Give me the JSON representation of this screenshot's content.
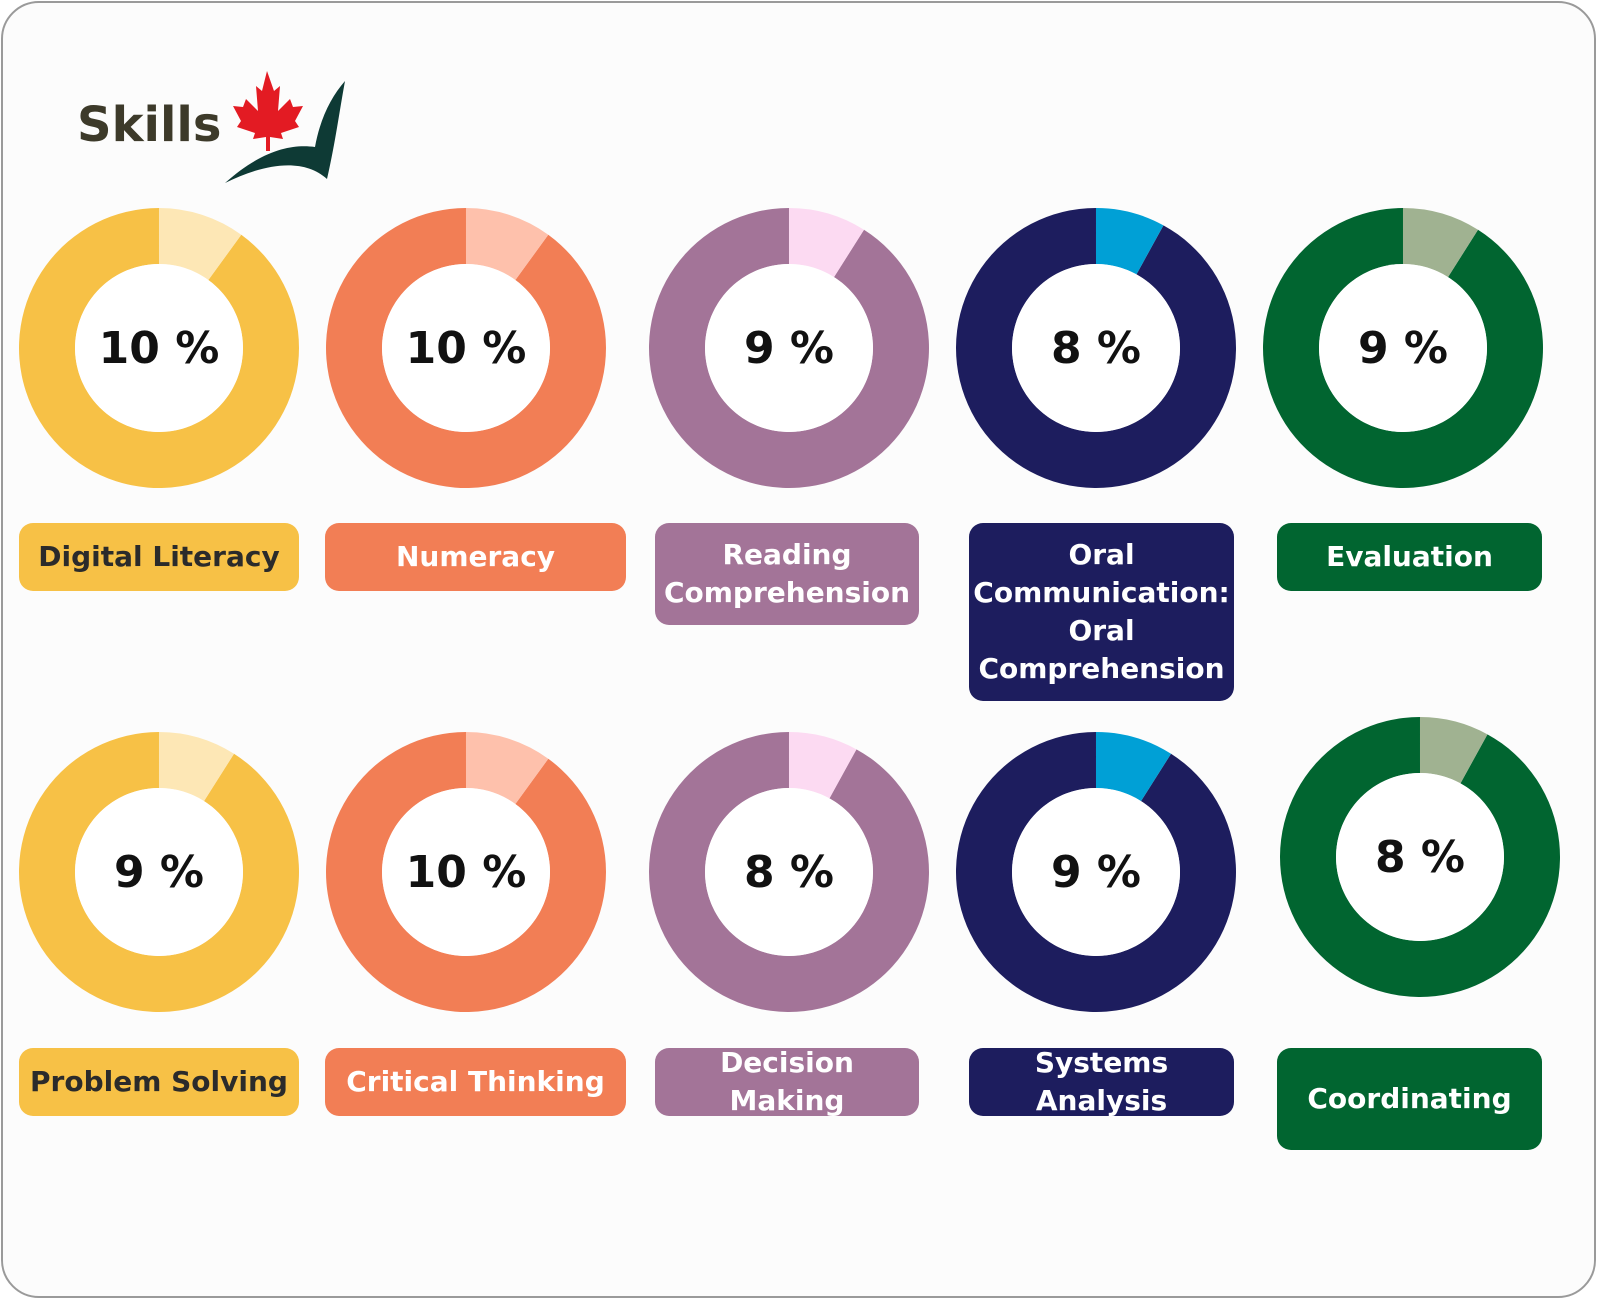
{
  "header": {
    "title": "Skills",
    "logo_icon": "maple-leaf-checkmark-icon",
    "logo_colors": {
      "leaf": "#e31b23",
      "check": "#0e3a35"
    }
  },
  "chart_data": {
    "type": "pie",
    "variant": "donut",
    "unit": "%",
    "items": [
      {
        "name": "Digital Literacy",
        "value": 10,
        "display": "10 %",
        "color": "#f7c146",
        "accent": "#fde7b5",
        "text_color": "#2b2b2b"
      },
      {
        "name": "Numeracy",
        "value": 10,
        "display": "10 %",
        "color": "#f27e55",
        "accent": "#fec1ac",
        "text_color": "#ffffff"
      },
      {
        "name": "Reading Comprehension",
        "value": 9,
        "display": "9 %",
        "color": "#a37498",
        "accent": "#fcdaf2",
        "text_color": "#ffffff"
      },
      {
        "name": "Oral Communication: Oral Comprehension",
        "value": 8,
        "display": "8 %",
        "color": "#1d1d5e",
        "accent": "#00a0d6",
        "text_color": "#ffffff"
      },
      {
        "name": "Evaluation",
        "value": 9,
        "display": "9 %",
        "color": "#016530",
        "accent": "#a0b291",
        "text_color": "#ffffff"
      },
      {
        "name": "Problem Solving",
        "value": 9,
        "display": "9 %",
        "color": "#f7c146",
        "accent": "#fde7b5",
        "text_color": "#2b2b2b"
      },
      {
        "name": "Critical Thinking",
        "value": 10,
        "display": "10 %",
        "color": "#f27e55",
        "accent": "#fec1ac",
        "text_color": "#ffffff"
      },
      {
        "name": "Decision Making",
        "value": 8,
        "display": "8 %",
        "color": "#a37498",
        "accent": "#fcdaf2",
        "text_color": "#ffffff"
      },
      {
        "name": "Systems Analysis",
        "value": 9,
        "display": "9 %",
        "color": "#1d1d5e",
        "accent": "#00a0d6",
        "text_color": "#ffffff"
      },
      {
        "name": "Coordinating",
        "value": 8,
        "display": "8 %",
        "color": "#016530",
        "accent": "#a0b291",
        "text_color": "#ffffff"
      }
    ]
  }
}
